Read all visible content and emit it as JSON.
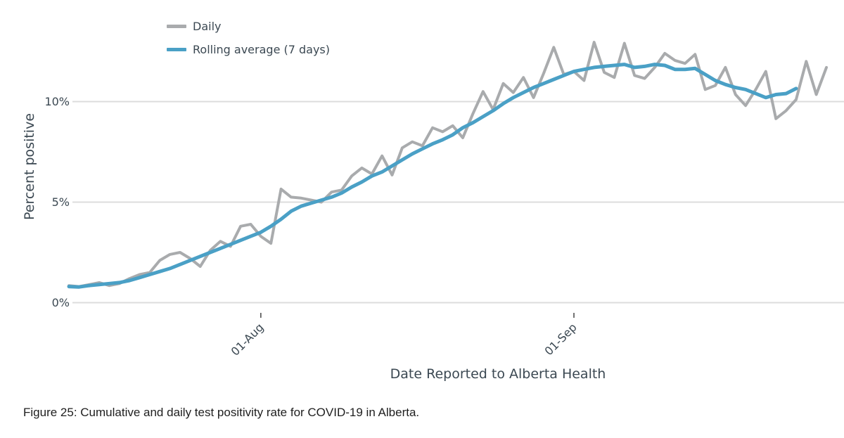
{
  "caption": {
    "text": "Figure 25: Cumulative and daily test positivity rate for COVID-19 in Alberta."
  },
  "colors": {
    "daily_line": "#a9abad",
    "rolling_line": "#4aa0c6",
    "grid": "#dcdcdc",
    "tick": "#444444",
    "text": "#3b4852"
  },
  "chart_data": {
    "type": "line",
    "title": "",
    "xlabel": "Date Reported to Alberta Health",
    "ylabel": "Percent positive",
    "ylim": [
      0,
      13.5
    ],
    "grid": "horizontal",
    "legend_position": "top-left",
    "y_ticks": [
      {
        "value": 0,
        "label": "0%"
      },
      {
        "value": 5,
        "label": "5%"
      },
      {
        "value": 10,
        "label": "10%"
      }
    ],
    "x_ticks": [
      {
        "label": "01-Aug",
        "category": "01-Aug"
      },
      {
        "label": "01-Sep",
        "category": "01-Sep"
      }
    ],
    "categories": [
      "13-Jul",
      "14-Jul",
      "15-Jul",
      "16-Jul",
      "17-Jul",
      "18-Jul",
      "19-Jul",
      "20-Jul",
      "21-Jul",
      "22-Jul",
      "23-Jul",
      "24-Jul",
      "25-Jul",
      "26-Jul",
      "27-Jul",
      "28-Jul",
      "29-Jul",
      "30-Jul",
      "31-Jul",
      "01-Aug",
      "02-Aug",
      "03-Aug",
      "04-Aug",
      "05-Aug",
      "06-Aug",
      "07-Aug",
      "08-Aug",
      "09-Aug",
      "10-Aug",
      "11-Aug",
      "12-Aug",
      "13-Aug",
      "14-Aug",
      "15-Aug",
      "16-Aug",
      "17-Aug",
      "18-Aug",
      "19-Aug",
      "20-Aug",
      "21-Aug",
      "22-Aug",
      "23-Aug",
      "24-Aug",
      "25-Aug",
      "26-Aug",
      "27-Aug",
      "28-Aug",
      "29-Aug",
      "30-Aug",
      "31-Aug",
      "01-Sep",
      "02-Sep",
      "03-Sep",
      "04-Sep",
      "05-Sep",
      "06-Sep",
      "07-Sep",
      "08-Sep",
      "09-Sep",
      "10-Sep",
      "11-Sep",
      "12-Sep",
      "13-Sep",
      "14-Sep",
      "15-Sep",
      "16-Sep",
      "17-Sep",
      "18-Sep",
      "19-Sep",
      "20-Sep",
      "21-Sep",
      "22-Sep",
      "23-Sep",
      "24-Sep",
      "25-Sep",
      "26-Sep"
    ],
    "series": [
      {
        "name": "Daily",
        "color": "#a9abad",
        "line_width": 4,
        "values": [
          0.85,
          0.8,
          0.9,
          1.0,
          0.85,
          0.95,
          1.2,
          1.4,
          1.5,
          2.1,
          2.4,
          2.5,
          2.2,
          1.8,
          2.6,
          3.05,
          2.8,
          3.8,
          3.9,
          3.3,
          2.95,
          5.65,
          5.25,
          5.2,
          5.1,
          5.0,
          5.5,
          5.6,
          6.3,
          6.7,
          6.4,
          7.3,
          6.35,
          7.7,
          8.0,
          7.8,
          8.7,
          8.5,
          8.8,
          8.2,
          9.4,
          10.5,
          9.6,
          10.9,
          10.45,
          11.2,
          10.2,
          11.4,
          12.7,
          11.35,
          11.5,
          11.05,
          12.95,
          11.45,
          11.2,
          12.9,
          11.3,
          11.15,
          11.7,
          12.4,
          12.05,
          11.9,
          12.35,
          10.6,
          10.8,
          11.7,
          10.35,
          9.8,
          10.6,
          11.5,
          9.15,
          9.55,
          10.1,
          12.0,
          10.35,
          11.7
        ]
      },
      {
        "name": "Rolling average (7 days)",
        "color": "#4aa0c6",
        "line_width": 5,
        "values": [
          0.8,
          0.78,
          0.85,
          0.9,
          0.95,
          1.0,
          1.1,
          1.25,
          1.4,
          1.55,
          1.7,
          1.9,
          2.1,
          2.3,
          2.5,
          2.7,
          2.9,
          3.1,
          3.3,
          3.5,
          3.8,
          4.15,
          4.55,
          4.8,
          4.95,
          5.1,
          5.25,
          5.45,
          5.75,
          6.0,
          6.3,
          6.5,
          6.8,
          7.1,
          7.4,
          7.65,
          7.9,
          8.1,
          8.35,
          8.7,
          8.95,
          9.25,
          9.55,
          9.9,
          10.2,
          10.45,
          10.7,
          10.9,
          11.1,
          11.3,
          11.5,
          11.6,
          11.7,
          11.75,
          11.8,
          11.85,
          11.7,
          11.75,
          11.85,
          11.8,
          11.6,
          11.6,
          11.65,
          11.35,
          11.05,
          10.85,
          10.7,
          10.6,
          10.4,
          10.2,
          10.35,
          10.4,
          10.65,
          null,
          null,
          null
        ]
      }
    ]
  }
}
